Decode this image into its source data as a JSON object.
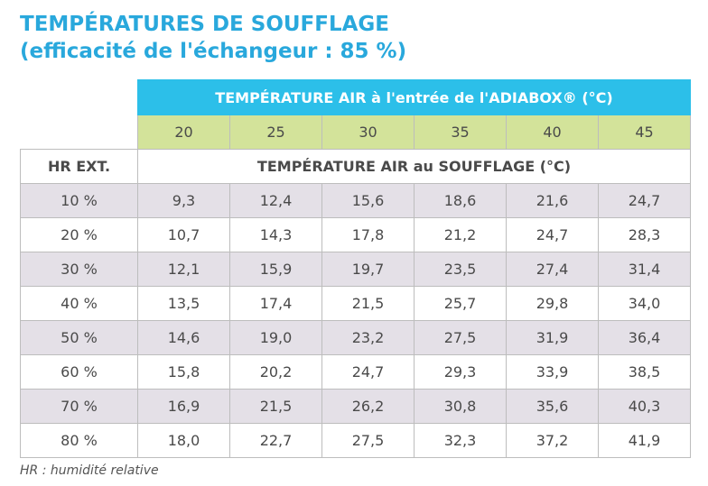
{
  "header": {
    "title": "TEMPÉRATURES DE SOUFFLAGE",
    "subtitle": "(efficacité de l'échangeur : 85 %)"
  },
  "table": {
    "top_header": "TEMPÉRATURE AIR à l'entrée de l'ADIABOX® (°C)",
    "columns": [
      "20",
      "25",
      "30",
      "35",
      "40",
      "45"
    ],
    "row_header_label": "HR EXT.",
    "sub_header": "TEMPÉRATURE AIR au SOUFFLAGE (°C)",
    "rows": [
      [
        "10 %",
        "9,3",
        "12,4",
        "15,6",
        "18,6",
        "21,6",
        "24,7"
      ],
      [
        "20 %",
        "10,7",
        "14,3",
        "17,8",
        "21,2",
        "24,7",
        "28,3"
      ],
      [
        "30 %",
        "12,1",
        "15,9",
        "19,7",
        "23,5",
        "27,4",
        "31,4"
      ],
      [
        "40 %",
        "13,5",
        "17,4",
        "21,5",
        "25,7",
        "29,8",
        "34,0"
      ],
      [
        "50 %",
        "14,6",
        "19,0",
        "23,2",
        "27,5",
        "31,9",
        "36,4"
      ],
      [
        "60 %",
        "15,8",
        "20,2",
        "24,7",
        "29,3",
        "33,9",
        "38,5"
      ],
      [
        "70 %",
        "16,9",
        "21,5",
        "26,2",
        "30,8",
        "35,6",
        "40,3"
      ],
      [
        "80 %",
        "18,0",
        "22,7",
        "27,5",
        "32,3",
        "37,2",
        "41,9"
      ]
    ]
  },
  "footnote": "HR : humidité relative"
}
